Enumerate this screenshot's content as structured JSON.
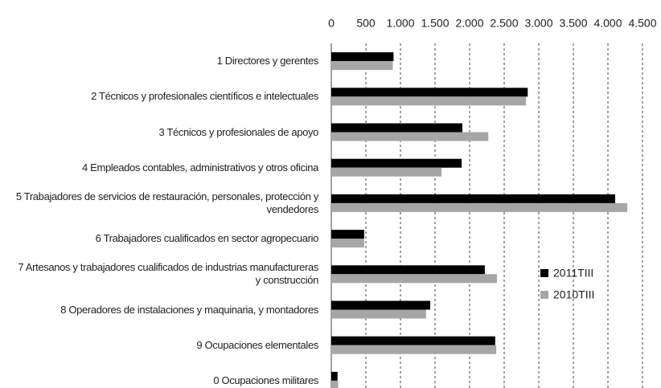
{
  "chart_data": {
    "type": "barh",
    "categories": [
      "1 Directores y gerentes",
      "2 Técnicos y profesionales científicos e intelectuales",
      "3 Técnicos y profesionales de apoyo",
      "4 Empleados contables, administrativos y otros oficina",
      "5 Trabajadores de servicios de restauración, personales, protección y vendedores",
      "6 Trabajadores cualificados en sector agropecuario",
      "7 Artesanos y trabajadores cualificados de industrias manufactureras y construcción",
      "8 Operadores de instalaciones y maquinaria, y montadores",
      "9 Ocupaciones elementales",
      "0 Ocupaciones militares"
    ],
    "series": [
      {
        "name": "2011TIII",
        "color": "#000000",
        "values": [
          900,
          2840,
          1895,
          1885,
          4105,
          475,
          2220,
          1430,
          2370,
          90
        ]
      },
      {
        "name": "2010TIII",
        "color": "#a6a6a6",
        "values": [
          890,
          2815,
          2270,
          1595,
          4280,
          475,
          2395,
          1370,
          2385,
          100
        ]
      }
    ],
    "xlim": [
      0,
      4500
    ],
    "xticks": [
      0,
      500,
      {
        "value": 1000,
        "label": "1.000"
      },
      {
        "value": 1500,
        "label": "1.500"
      },
      {
        "value": 2000,
        "label": "2.000"
      },
      {
        "value": 2500,
        "label": "2.500"
      },
      {
        "value": 3000,
        "label": "3.000"
      },
      {
        "value": 3500,
        "label": "3.500"
      },
      {
        "value": 4000,
        "label": "4.000"
      },
      {
        "value": 4500,
        "label": "4.500"
      }
    ],
    "grid": true,
    "legend": "right"
  }
}
